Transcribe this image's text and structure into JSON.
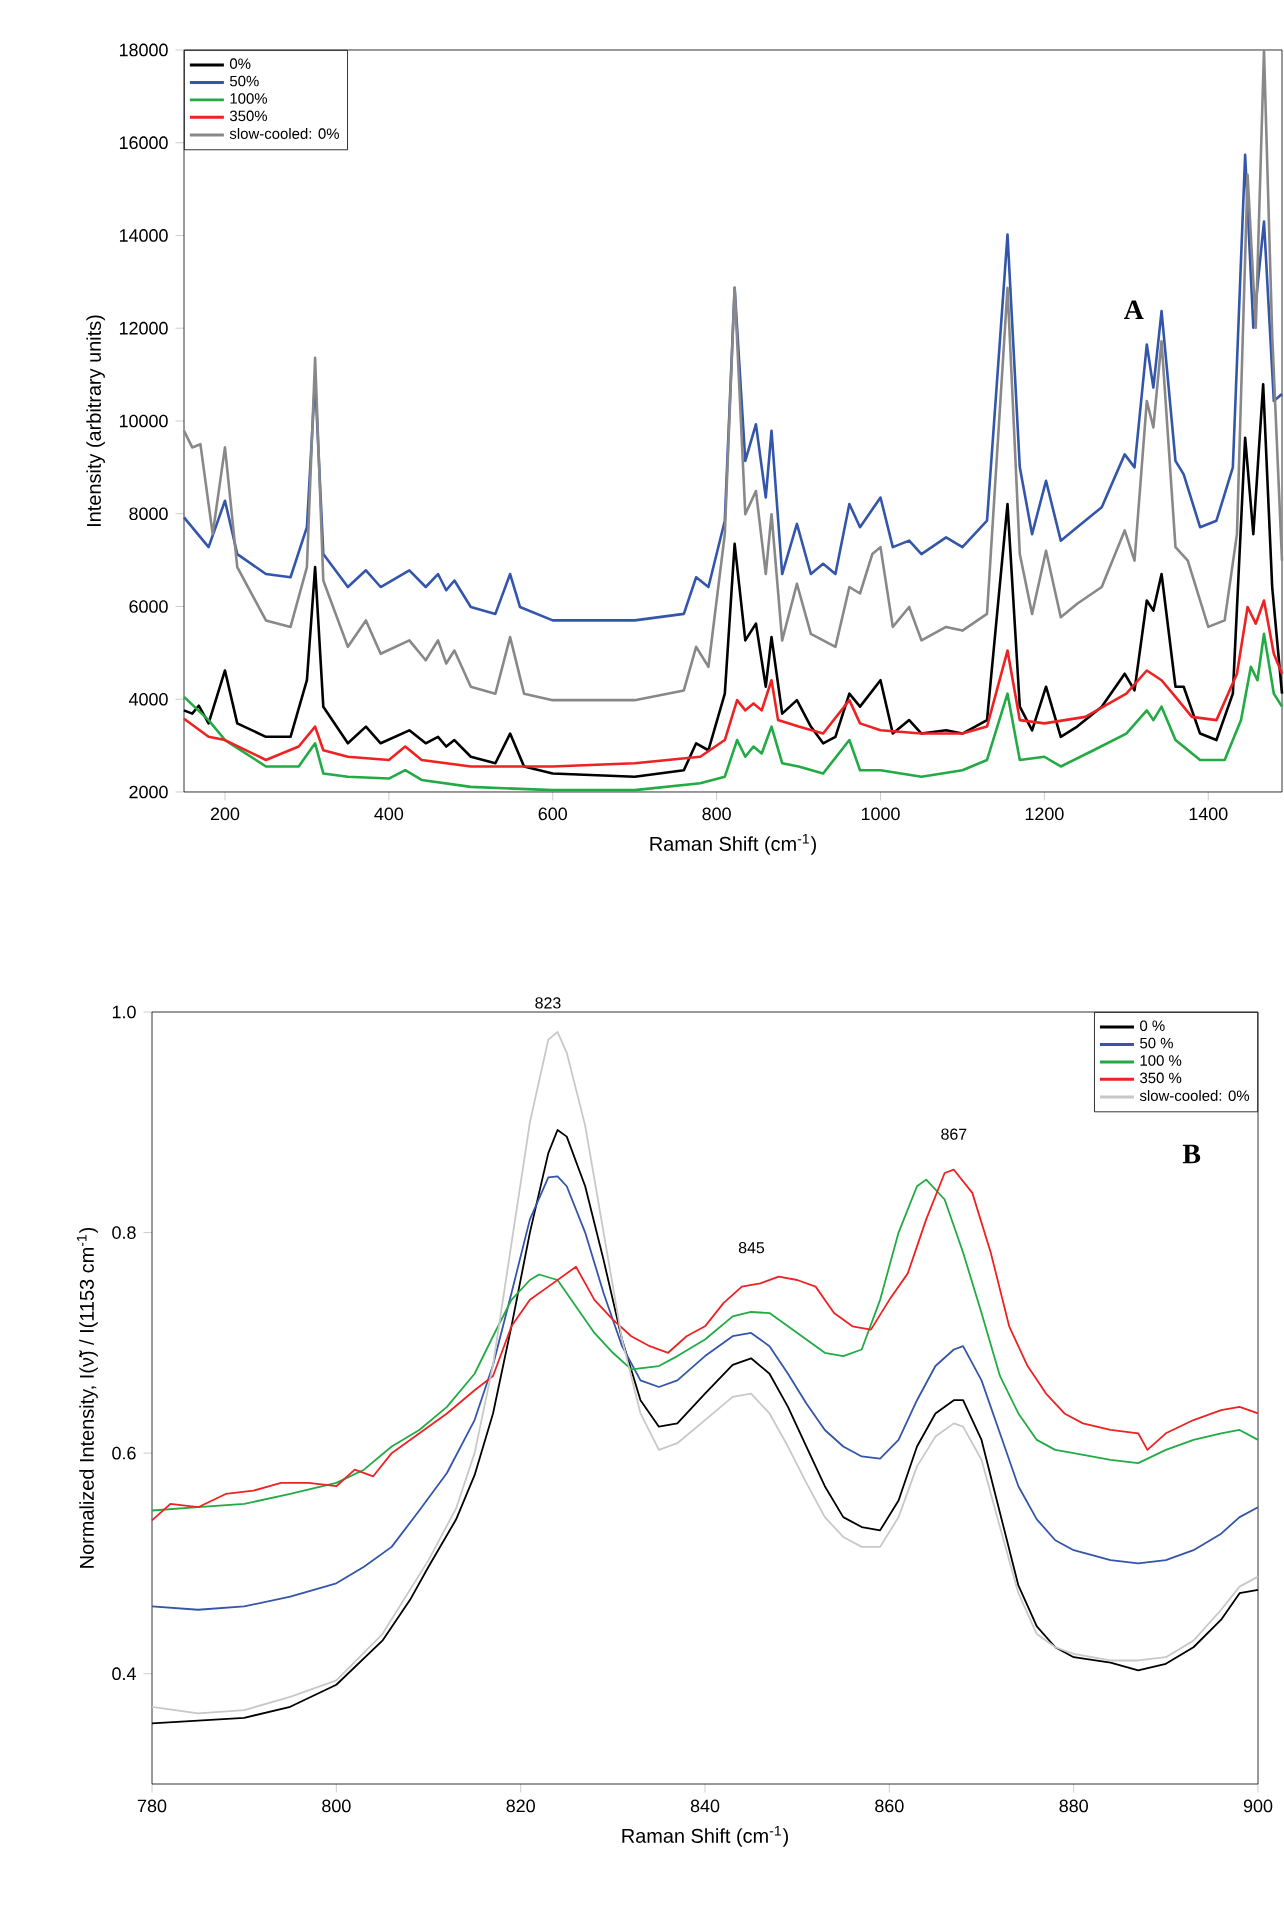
{
  "chart_data": [
    {
      "type": "line",
      "xlabel": "Raman Shift (cm$^{-1}$)",
      "ylabel": "Intensity (arbitrary units)",
      "xlim": [
        150,
        1490
      ],
      "ylim": [
        2000,
        18000
      ],
      "xticks": [
        200,
        400,
        600,
        800,
        1000,
        1200,
        1400
      ],
      "yticks": [
        2000,
        4000,
        6000,
        8000,
        10000,
        12000,
        14000,
        16000,
        18000
      ],
      "legend": "top left",
      "annotations": [
        "A"
      ],
      "series": [
        {
          "name": "0%",
          "color": "#000000",
          "x": [
            150,
            160,
            168,
            180,
            200,
            215,
            250,
            280,
            300,
            310,
            320,
            350,
            372,
            390,
            425,
            445,
            460,
            470,
            480,
            500,
            530,
            548,
            565,
            600,
            700,
            760,
            775,
            790,
            810,
            822,
            835,
            848,
            860,
            867,
            880,
            898,
            915,
            930,
            945,
            962,
            975,
            1000,
            1015,
            1035,
            1050,
            1080,
            1100,
            1130,
            1155,
            1170,
            1185,
            1202,
            1220,
            1240,
            1270,
            1298,
            1310,
            1325,
            1333,
            1343,
            1360,
            1370,
            1390,
            1410,
            1430,
            1445,
            1455,
            1467,
            1478,
            1490
          ],
          "values": [
            3760,
            3690,
            3860,
            3480,
            4620,
            3480,
            3190,
            3190,
            4410,
            6850,
            3840,
            3050,
            3410,
            3050,
            3330,
            3050,
            3190,
            2980,
            3120,
            2760,
            2620,
            3260,
            2550,
            2400,
            2330,
            2470,
            3050,
            2900,
            4120,
            7350,
            5270,
            5630,
            4270,
            5340,
            3690,
            3980,
            3410,
            3050,
            3190,
            4120,
            3840,
            4410,
            3260,
            3550,
            3260,
            3330,
            3260,
            3550,
            8210,
            3840,
            3330,
            4270,
            3190,
            3410,
            3840,
            4550,
            4190,
            6130,
            5910,
            6700,
            4270,
            4270,
            3260,
            3120,
            4120,
            9640,
            7560,
            10790,
            6420,
            4120
          ]
        },
        {
          "name": "50%",
          "color": "#3355aa",
          "x": [
            150,
            180,
            200,
            215,
            250,
            280,
            300,
            310,
            320,
            350,
            372,
            390,
            425,
            445,
            460,
            470,
            480,
            500,
            530,
            548,
            560,
            600,
            700,
            760,
            775,
            790,
            810,
            822,
            835,
            848,
            860,
            867,
            880,
            898,
            915,
            930,
            945,
            962,
            975,
            1000,
            1015,
            1035,
            1050,
            1080,
            1100,
            1130,
            1155,
            1170,
            1185,
            1202,
            1220,
            1240,
            1270,
            1298,
            1310,
            1325,
            1333,
            1343,
            1360,
            1370,
            1390,
            1410,
            1430,
            1445,
            1455,
            1468,
            1480,
            1490
          ],
          "values": [
            7920,
            7280,
            8280,
            7130,
            6700,
            6630,
            7710,
            10900,
            7130,
            6420,
            6780,
            6420,
            6780,
            6420,
            6700,
            6350,
            6560,
            5990,
            5840,
            6700,
            5990,
            5700,
            5700,
            5840,
            6630,
            6420,
            7850,
            12870,
            9140,
            9930,
            8350,
            9790,
            6700,
            7780,
            6700,
            6920,
            6700,
            8210,
            7710,
            8350,
            7280,
            7420,
            7130,
            7490,
            7280,
            7850,
            14020,
            9000,
            7560,
            8710,
            7420,
            7710,
            8140,
            9280,
            9000,
            11650,
            10720,
            12370,
            9140,
            8850,
            7710,
            7850,
            9000,
            15740,
            12010,
            14300,
            10430,
            10580
          ]
        },
        {
          "name": "100%",
          "color": "#22aa44",
          "x": [
            150,
            180,
            200,
            250,
            290,
            310,
            320,
            350,
            400,
            420,
            440,
            500,
            600,
            700,
            780,
            810,
            825,
            835,
            845,
            855,
            867,
            880,
            900,
            930,
            962,
            975,
            1000,
            1050,
            1100,
            1130,
            1155,
            1170,
            1200,
            1220,
            1260,
            1300,
            1325,
            1333,
            1343,
            1360,
            1390,
            1420,
            1440,
            1452,
            1460,
            1468,
            1480,
            1490
          ],
          "values": [
            4050,
            3550,
            3120,
            2550,
            2550,
            3050,
            2400,
            2330,
            2290,
            2470,
            2260,
            2110,
            2040,
            2040,
            2190,
            2330,
            3120,
            2760,
            2980,
            2830,
            3410,
            2620,
            2550,
            2400,
            3120,
            2470,
            2470,
            2330,
            2470,
            2690,
            4120,
            2690,
            2760,
            2550,
            2900,
            3260,
            3760,
            3550,
            3840,
            3120,
            2690,
            2690,
            3550,
            4700,
            4410,
            5410,
            4120,
            3840
          ]
        },
        {
          "name": "350%",
          "color": "#ee2222",
          "x": [
            150,
            180,
            200,
            250,
            290,
            310,
            320,
            350,
            400,
            420,
            440,
            500,
            600,
            700,
            780,
            810,
            825,
            835,
            845,
            855,
            867,
            875,
            900,
            930,
            962,
            975,
            1000,
            1050,
            1100,
            1130,
            1155,
            1170,
            1200,
            1250,
            1300,
            1325,
            1343,
            1360,
            1380,
            1410,
            1435,
            1448,
            1458,
            1468,
            1480,
            1490
          ],
          "values": [
            3580,
            3190,
            3120,
            2690,
            2980,
            3410,
            2900,
            2760,
            2690,
            2980,
            2690,
            2550,
            2550,
            2620,
            2760,
            3120,
            3980,
            3760,
            3910,
            3760,
            4410,
            3550,
            3410,
            3260,
            3980,
            3480,
            3330,
            3260,
            3260,
            3410,
            5050,
            3550,
            3480,
            3620,
            4120,
            4620,
            4410,
            4050,
            3620,
            3550,
            4550,
            5990,
            5630,
            6130,
            4980,
            4550
          ]
        },
        {
          "name": "slow-cooled: 0%",
          "color": "#888888",
          "x": [
            150,
            160,
            170,
            185,
            200,
            215,
            250,
            280,
            300,
            310,
            320,
            350,
            372,
            390,
            425,
            445,
            460,
            470,
            480,
            500,
            530,
            548,
            565,
            600,
            700,
            760,
            775,
            790,
            810,
            822,
            835,
            848,
            860,
            867,
            880,
            898,
            915,
            930,
            945,
            962,
            975,
            990,
            1000,
            1015,
            1035,
            1050,
            1080,
            1100,
            1130,
            1155,
            1170,
            1185,
            1202,
            1220,
            1240,
            1270,
            1298,
            1310,
            1325,
            1333,
            1343,
            1360,
            1375,
            1400,
            1420,
            1435,
            1448,
            1458,
            1468,
            1478,
            1490
          ],
          "values": [
            9790,
            9430,
            9500,
            7560,
            9430,
            6850,
            5700,
            5560,
            6850,
            11360,
            6560,
            5130,
            5700,
            4980,
            5270,
            4840,
            5270,
            4770,
            5050,
            4270,
            4120,
            5340,
            4120,
            3980,
            3980,
            4190,
            5130,
            4700,
            7560,
            12870,
            7990,
            8490,
            6700,
            7990,
            5270,
            6490,
            5410,
            5270,
            5130,
            6420,
            6280,
            7130,
            7280,
            5560,
            5990,
            5270,
            5560,
            5480,
            5840,
            12870,
            7130,
            5840,
            7200,
            5770,
            6060,
            6420,
            7640,
            6990,
            10430,
            9860,
            11720,
            7280,
            6990,
            5560,
            5700,
            7560,
            15310,
            12010,
            17980,
            11870,
            6990
          ]
        }
      ]
    },
    {
      "type": "line",
      "xlabel": "Raman Shift (cm$^{-1}$)",
      "ylabel": "Normalized Intensity, I(ν̃) / I(1153 cm$^{-1}$)",
      "xlim": [
        780,
        900
      ],
      "ylim": [
        0.3,
        1.0
      ],
      "xticks": [
        780,
        800,
        820,
        840,
        860,
        880,
        900
      ],
      "yticks": [
        0.4,
        0.6,
        0.8,
        {
          "value": 1.0,
          "label": "1.0"
        }
      ],
      "legend": "top right",
      "annotations": [
        "823",
        "845",
        "867",
        "B"
      ],
      "series": [
        {
          "name": "0 %",
          "color": "#000000",
          "x": [
            780,
            790,
            795,
            800,
            805,
            808,
            810,
            813,
            815,
            817,
            819,
            821,
            823,
            824,
            825,
            827,
            829,
            831,
            833,
            835,
            837,
            840,
            843,
            845,
            847,
            849,
            851,
            853,
            855,
            857,
            859,
            861,
            863,
            865,
            867,
            868,
            870,
            872,
            874,
            876,
            878,
            880,
            884,
            887,
            890,
            893,
            896,
            898,
            900
          ],
          "values": [
            0.355,
            0.36,
            0.37,
            0.39,
            0.43,
            0.467,
            0.497,
            0.54,
            0.58,
            0.636,
            0.715,
            0.8,
            0.872,
            0.893,
            0.887,
            0.842,
            0.775,
            0.703,
            0.648,
            0.624,
            0.627,
            0.654,
            0.68,
            0.686,
            0.672,
            0.642,
            0.606,
            0.57,
            0.542,
            0.533,
            0.53,
            0.557,
            0.606,
            0.636,
            0.648,
            0.648,
            0.612,
            0.546,
            0.48,
            0.443,
            0.424,
            0.415,
            0.41,
            0.403,
            0.409,
            0.424,
            0.449,
            0.473,
            0.476
          ]
        },
        {
          "name": "50 %",
          "color": "#3355aa",
          "x": [
            780,
            785,
            790,
            795,
            800,
            803,
            806,
            809,
            812,
            815,
            817,
            819,
            821,
            823,
            824,
            825,
            827,
            829,
            831,
            833,
            835,
            837,
            840,
            843,
            845,
            847,
            849,
            851,
            853,
            855,
            857,
            859,
            861,
            863,
            865,
            867,
            868,
            870,
            872,
            874,
            876,
            878,
            880,
            884,
            887,
            890,
            893,
            896,
            898,
            900
          ],
          "values": [
            0.461,
            0.458,
            0.461,
            0.47,
            0.482,
            0.497,
            0.515,
            0.548,
            0.582,
            0.63,
            0.68,
            0.745,
            0.812,
            0.85,
            0.851,
            0.842,
            0.8,
            0.745,
            0.697,
            0.666,
            0.66,
            0.666,
            0.688,
            0.706,
            0.709,
            0.697,
            0.672,
            0.645,
            0.621,
            0.606,
            0.597,
            0.595,
            0.612,
            0.648,
            0.679,
            0.694,
            0.697,
            0.666,
            0.618,
            0.57,
            0.54,
            0.521,
            0.512,
            0.503,
            0.5,
            0.503,
            0.512,
            0.527,
            0.542,
            0.551
          ]
        },
        {
          "name": "100 %",
          "color": "#22aa44",
          "x": [
            780,
            785,
            790,
            795,
            800,
            803,
            806,
            809,
            812,
            815,
            817,
            819,
            821,
            822,
            824,
            826,
            828,
            830,
            832,
            835,
            837,
            840,
            843,
            845,
            847,
            849,
            851,
            853,
            855,
            857,
            859,
            861,
            863,
            864,
            866,
            868,
            870,
            872,
            874,
            876,
            878,
            880,
            884,
            887,
            890,
            893,
            896,
            898,
            900
          ],
          "values": [
            0.548,
            0.551,
            0.554,
            0.563,
            0.573,
            0.585,
            0.606,
            0.621,
            0.642,
            0.672,
            0.706,
            0.739,
            0.757,
            0.762,
            0.757,
            0.733,
            0.709,
            0.691,
            0.676,
            0.679,
            0.688,
            0.703,
            0.724,
            0.728,
            0.727,
            0.715,
            0.703,
            0.691,
            0.688,
            0.694,
            0.739,
            0.8,
            0.842,
            0.848,
            0.83,
            0.782,
            0.727,
            0.67,
            0.636,
            0.612,
            0.603,
            0.6,
            0.594,
            0.591,
            0.603,
            0.612,
            0.618,
            0.621,
            0.612
          ]
        },
        {
          "name": "350 %",
          "color": "#ee2222",
          "x": [
            780,
            782,
            785,
            788,
            791,
            794,
            797,
            800,
            802,
            804,
            806,
            809,
            812,
            815,
            817,
            819,
            821,
            823,
            824,
            826,
            828,
            830,
            832,
            834,
            836,
            838,
            840,
            842,
            844,
            846,
            848,
            850,
            852,
            854,
            856,
            858,
            860,
            862,
            864,
            866,
            867,
            869,
            871,
            873,
            875,
            877,
            879,
            881,
            884,
            887,
            888,
            890,
            893,
            896,
            898,
            900
          ],
          "values": [
            0.539,
            0.554,
            0.551,
            0.563,
            0.566,
            0.573,
            0.573,
            0.57,
            0.585,
            0.579,
            0.6,
            0.618,
            0.636,
            0.657,
            0.67,
            0.715,
            0.739,
            0.751,
            0.757,
            0.769,
            0.739,
            0.721,
            0.706,
            0.697,
            0.691,
            0.706,
            0.715,
            0.736,
            0.751,
            0.754,
            0.76,
            0.757,
            0.751,
            0.727,
            0.715,
            0.712,
            0.739,
            0.763,
            0.812,
            0.854,
            0.857,
            0.836,
            0.782,
            0.715,
            0.679,
            0.654,
            0.636,
            0.627,
            0.621,
            0.618,
            0.603,
            0.618,
            0.63,
            0.639,
            0.642,
            0.636
          ]
        },
        {
          "name": "slow-cooled: 0%",
          "color": "#c8c8c8",
          "x": [
            780,
            785,
            790,
            795,
            800,
            805,
            810,
            813,
            815,
            817,
            819,
            821,
            823,
            824,
            825,
            827,
            829,
            831,
            833,
            835,
            837,
            840,
            843,
            845,
            847,
            849,
            851,
            853,
            855,
            857,
            859,
            861,
            863,
            865,
            867,
            868,
            870,
            872,
            874,
            876,
            878,
            880,
            884,
            887,
            890,
            893,
            896,
            898,
            900
          ],
          "values": [
            0.37,
            0.364,
            0.367,
            0.379,
            0.394,
            0.436,
            0.503,
            0.55,
            0.6,
            0.68,
            0.79,
            0.9,
            0.975,
            0.982,
            0.963,
            0.897,
            0.8,
            0.703,
            0.636,
            0.603,
            0.609,
            0.63,
            0.651,
            0.654,
            0.636,
            0.606,
            0.573,
            0.542,
            0.524,
            0.515,
            0.515,
            0.542,
            0.588,
            0.615,
            0.627,
            0.624,
            0.594,
            0.533,
            0.473,
            0.436,
            0.424,
            0.418,
            0.412,
            0.412,
            0.415,
            0.43,
            0.458,
            0.479,
            0.488
          ]
        }
      ]
    }
  ]
}
